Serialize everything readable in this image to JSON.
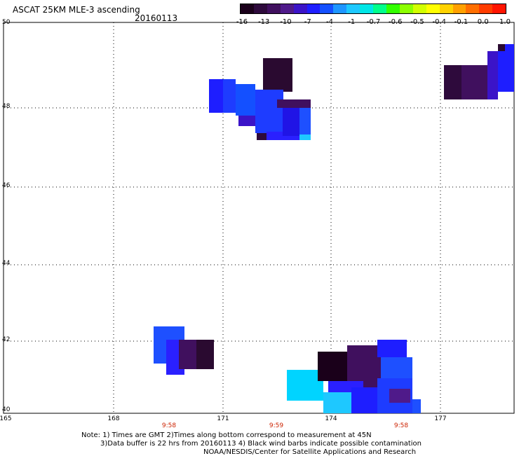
{
  "header": {
    "title": "ASCAT 25KM MLE-3 ascending",
    "date": "20160113"
  },
  "colorbar": {
    "labels": [
      "-16",
      "-13",
      "-10",
      "-7",
      "-4",
      "-1",
      "-0.7",
      "-0.6",
      "-0.5",
      "-0.4",
      "-0.1",
      "0.0",
      "1.0"
    ],
    "colors": [
      "#1a001a",
      "#2e0a3c",
      "#40105e",
      "#4f1a8a",
      "#3b14c8",
      "#1e1eff",
      "#1450ff",
      "#1e96ff",
      "#1ec8ff",
      "#00e6e6",
      "#00ff8c",
      "#32ff00",
      "#8cff00",
      "#d2ff00",
      "#ffff00",
      "#ffd200",
      "#ffa000",
      "#ff6e00",
      "#ff3c00",
      "#ff1400"
    ]
  },
  "axes": {
    "lat_labels": [
      "50",
      "48",
      "46",
      "44",
      "42",
      "40"
    ],
    "lon_labels": [
      "165",
      "168",
      "171",
      "174",
      "177"
    ],
    "time_labels": [
      "9:58",
      "9:59",
      "9:58"
    ]
  },
  "footnote": {
    "line1": "Note: 1) Times are GMT 2)Times along bottom correspond to measurement at 45N",
    "line2": "3)Data buffer is 22 hrs from 20160113 4) Black wind barbs indicate possible contamination",
    "line3": "NOAA/NESDIS/Center for Satellite Applications and Research"
  }
}
